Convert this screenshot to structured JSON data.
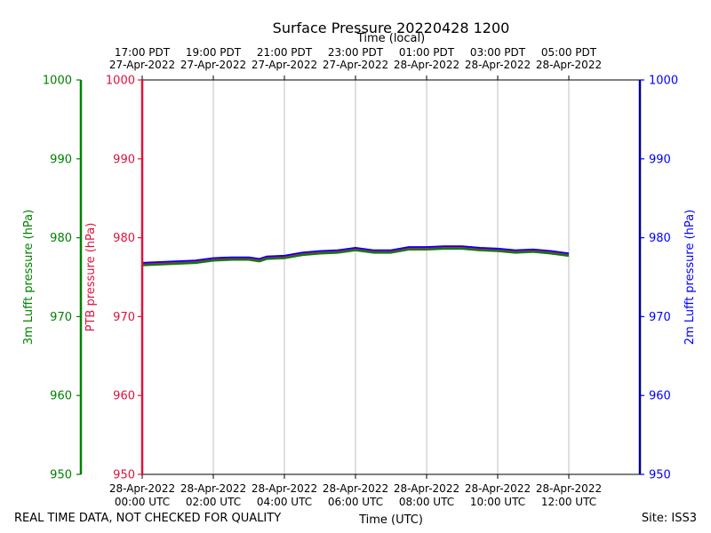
{
  "chart_data": {
    "type": "line",
    "title": "Surface Pressure 20220428 1200",
    "xlabel_bottom": "Time (UTC)",
    "xlabel_top": "Time (local)",
    "x_range_hours": [
      0,
      14
    ],
    "bottom_ticks": [
      {
        "h": 0,
        "l1": "28-Apr-2022",
        "l2": "00:00 UTC"
      },
      {
        "h": 2,
        "l1": "28-Apr-2022",
        "l2": "02:00 UTC"
      },
      {
        "h": 4,
        "l1": "28-Apr-2022",
        "l2": "04:00 UTC"
      },
      {
        "h": 6,
        "l1": "28-Apr-2022",
        "l2": "06:00 UTC"
      },
      {
        "h": 8,
        "l1": "28-Apr-2022",
        "l2": "08:00 UTC"
      },
      {
        "h": 10,
        "l1": "28-Apr-2022",
        "l2": "10:00 UTC"
      },
      {
        "h": 12,
        "l1": "28-Apr-2022",
        "l2": "12:00 UTC"
      }
    ],
    "top_ticks": [
      {
        "h": 0,
        "l1": "17:00 PDT",
        "l2": "27-Apr-2022"
      },
      {
        "h": 2,
        "l1": "19:00 PDT",
        "l2": "27-Apr-2022"
      },
      {
        "h": 4,
        "l1": "21:00 PDT",
        "l2": "27-Apr-2022"
      },
      {
        "h": 6,
        "l1": "23:00 PDT",
        "l2": "27-Apr-2022"
      },
      {
        "h": 8,
        "l1": "01:00 PDT",
        "l2": "28-Apr-2022"
      },
      {
        "h": 10,
        "l1": "03:00 PDT",
        "l2": "28-Apr-2022"
      },
      {
        "h": 12,
        "l1": "05:00 PDT",
        "l2": "28-Apr-2022"
      }
    ],
    "ylim": [
      950,
      1000
    ],
    "yticks": [
      950,
      960,
      970,
      980,
      990,
      1000
    ],
    "axes": [
      {
        "name": "3m Lufft pressure (hPa)",
        "color": "#008000"
      },
      {
        "name": "PTB pressure (hPa)",
        "color": "#dc143c"
      },
      {
        "name": "2m Lufft pressure (hPa)",
        "color": "#0000ff"
      }
    ],
    "series": [
      {
        "color": "#0000ff",
        "x": [
          0,
          0.5,
          1,
          1.5,
          2,
          2.5,
          3,
          3.3,
          3.5,
          4,
          4.5,
          5,
          5.5,
          6,
          6.5,
          7,
          7.5,
          8,
          8.5,
          9,
          9.5,
          10,
          10.5,
          11,
          11.5,
          12
        ],
        "y": [
          976.8,
          976.9,
          977.0,
          977.1,
          977.4,
          977.5,
          977.5,
          977.3,
          977.6,
          977.7,
          978.1,
          978.3,
          978.4,
          978.7,
          978.4,
          978.4,
          978.8,
          978.8,
          978.9,
          978.9,
          978.7,
          978.6,
          978.4,
          978.5,
          978.3,
          978.0
        ]
      },
      {
        "color": "#dc143c",
        "x": [
          0,
          0.5,
          1,
          1.5,
          2,
          2.5,
          3,
          3.3,
          3.5,
          4,
          4.5,
          5,
          5.5,
          6,
          6.5,
          7,
          7.5,
          8,
          8.5,
          9,
          9.5,
          10,
          10.5,
          11,
          11.5,
          12
        ],
        "y": [
          976.6,
          976.7,
          976.8,
          976.9,
          977.2,
          977.3,
          977.3,
          977.1,
          977.4,
          977.5,
          977.9,
          978.1,
          978.2,
          978.5,
          978.2,
          978.2,
          978.6,
          978.6,
          978.7,
          978.7,
          978.5,
          978.4,
          978.2,
          978.3,
          978.1,
          977.8
        ]
      },
      {
        "color": "#008000",
        "x": [
          0,
          0.5,
          1,
          1.5,
          2,
          2.5,
          3,
          3.3,
          3.5,
          4,
          4.5,
          5,
          5.5,
          6,
          6.5,
          7,
          7.5,
          8,
          8.5,
          9,
          9.5,
          10,
          10.5,
          11,
          11.5,
          12
        ],
        "y": [
          976.5,
          976.6,
          976.7,
          976.8,
          977.1,
          977.2,
          977.2,
          977.0,
          977.3,
          977.4,
          977.8,
          978.0,
          978.1,
          978.4,
          978.1,
          978.1,
          978.5,
          978.5,
          978.6,
          978.6,
          978.4,
          978.3,
          978.1,
          978.2,
          978.0,
          977.7
        ]
      }
    ],
    "grid": "vertical"
  },
  "footer": {
    "left": "REAL TIME DATA, NOT CHECKED FOR QUALITY",
    "right": "Site: ISS3"
  }
}
